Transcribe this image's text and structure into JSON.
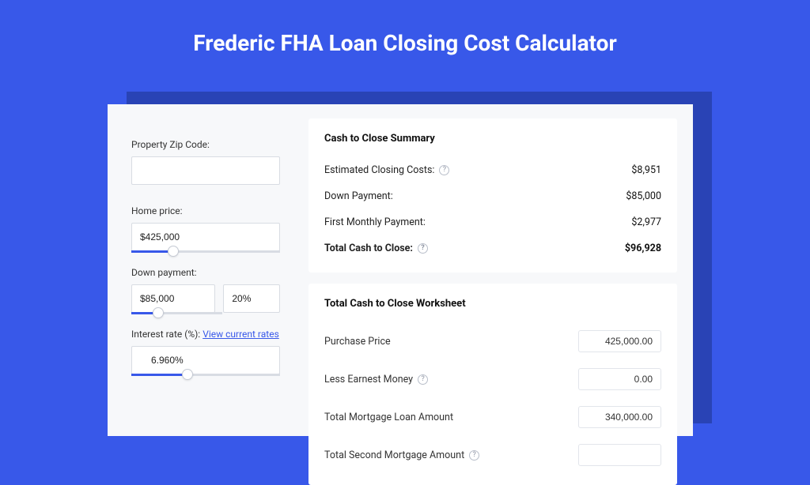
{
  "colors": {
    "page_bg": "#3858e9",
    "shadow": "#2943b5",
    "card_bg": "#f7f8fa",
    "panel_bg": "#ffffff",
    "accent": "#3858e9",
    "border": "#d8dce3",
    "text": "#222222"
  },
  "header": {
    "title": "Frederic FHA Loan Closing Cost Calculator"
  },
  "form": {
    "zip_label": "Property Zip Code:",
    "zip_value": "",
    "home_price_label": "Home price:",
    "home_price_value": "$425,000",
    "home_price_slider_pct": 28,
    "down_payment_label": "Down payment:",
    "down_payment_value": "$85,000",
    "down_payment_pct": "20%",
    "down_payment_slider_pct": 30,
    "interest_label": "Interest rate (%):",
    "interest_link": "View current rates",
    "interest_value": "6.960%",
    "interest_slider_pct": 38
  },
  "summary": {
    "title": "Cash to Close Summary",
    "rows": [
      {
        "label": "Estimated Closing Costs:",
        "help": true,
        "value": "$8,951",
        "bold": false
      },
      {
        "label": "Down Payment:",
        "help": false,
        "value": "$85,000",
        "bold": false
      },
      {
        "label": "First Monthly Payment:",
        "help": false,
        "value": "$2,977",
        "bold": false
      },
      {
        "label": "Total Cash to Close:",
        "help": true,
        "value": "$96,928",
        "bold": true
      }
    ]
  },
  "worksheet": {
    "title": "Total Cash to Close Worksheet",
    "rows": [
      {
        "label": "Purchase Price",
        "help": false,
        "value": "425,000.00"
      },
      {
        "label": "Less Earnest Money",
        "help": true,
        "value": "0.00"
      },
      {
        "label": "Total Mortgage Loan Amount",
        "help": false,
        "value": "340,000.00"
      },
      {
        "label": "Total Second Mortgage Amount",
        "help": true,
        "value": ""
      }
    ]
  }
}
